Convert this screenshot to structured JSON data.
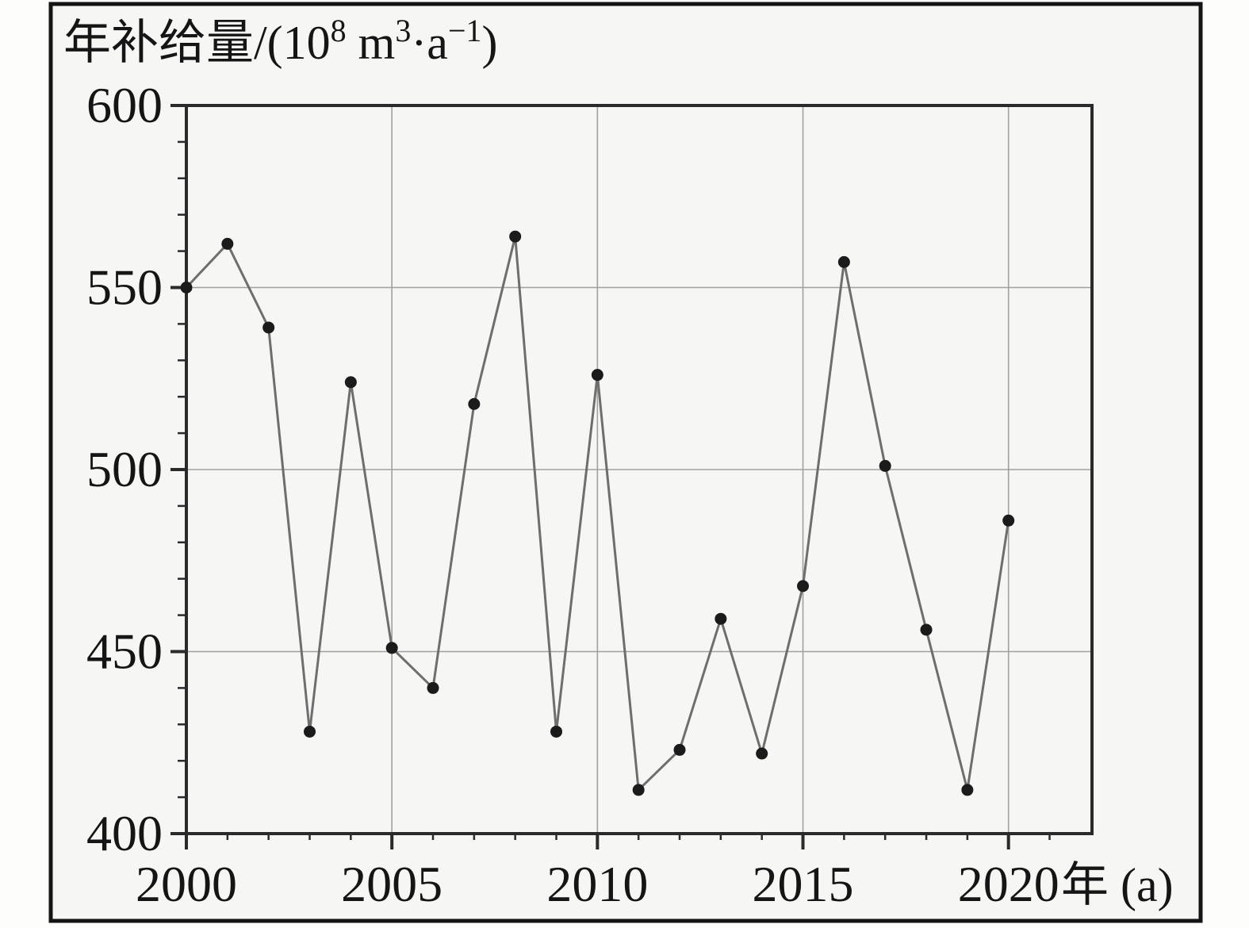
{
  "title_parts": {
    "p1": "年补给量/(10",
    "sup1": "8",
    "p2": " m",
    "sup2": "3",
    "p3": "·a",
    "sup3": "−1",
    "p4": ")"
  },
  "colors": {
    "background": "#f6f6f4",
    "frame_border": "#141414",
    "axis": "#2a2a2a",
    "gridline": "#a0a0a0",
    "line": "#6e6e6e",
    "point": "#1b1b1b",
    "text": "#151515"
  },
  "chart_data": {
    "type": "line",
    "title": "年补给量/(10⁸ m³·a⁻¹)",
    "xlabel": "年 (a)",
    "ylabel": "年补给量/(10⁸ m³·a⁻¹)",
    "x": [
      2000,
      2001,
      2002,
      2003,
      2004,
      2005,
      2006,
      2007,
      2008,
      2009,
      2010,
      2011,
      2012,
      2013,
      2014,
      2015,
      2016,
      2017,
      2018,
      2019,
      2020
    ],
    "values": [
      550,
      562,
      539,
      428,
      524,
      451,
      440,
      518,
      564,
      428,
      526,
      412,
      423,
      459,
      422,
      468,
      557,
      501,
      456,
      412,
      486
    ],
    "series_name": "年补给量",
    "xlim": [
      2000,
      2022
    ],
    "ylim": [
      400,
      600
    ],
    "x_ticks": [
      2000,
      2005,
      2010,
      2015,
      2020
    ],
    "y_ticks": [
      400,
      450,
      500,
      550,
      600
    ],
    "x_minor_tick_step": 1,
    "y_minor_tick_step": 10,
    "grid": "on",
    "legend": "none",
    "marker": "filled-circle"
  }
}
